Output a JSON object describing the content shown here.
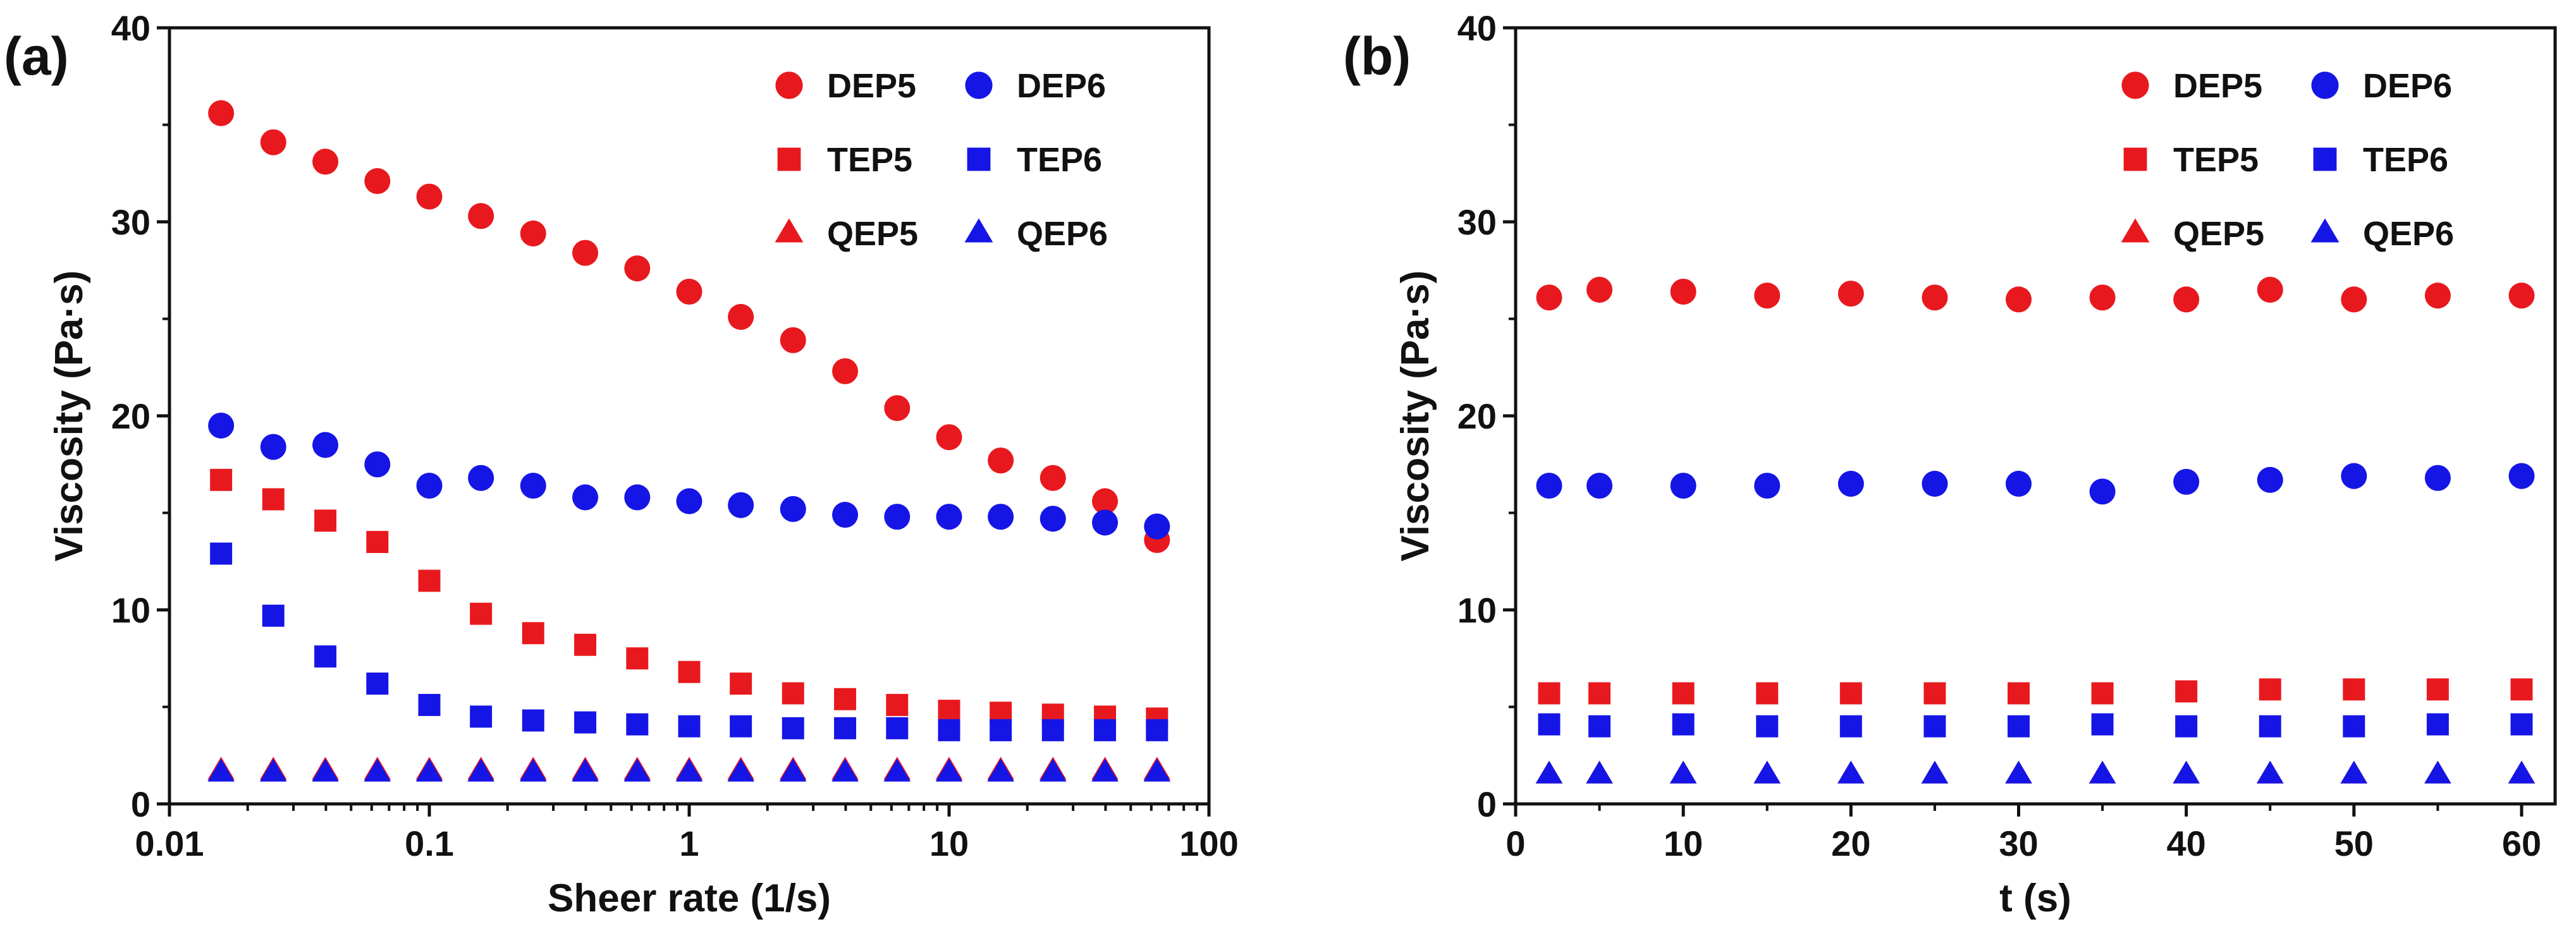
{
  "chart_data": [
    {
      "type": "scatter",
      "panel_label": "(a)",
      "xlabel": "Sheer rate (1/s)",
      "ylabel": "Viscosity (Pa·s)",
      "xscale": "log",
      "xlim": [
        0.01,
        100
      ],
      "ylim": [
        0,
        40
      ],
      "xticks": [
        0.01,
        0.1,
        1,
        10,
        100
      ],
      "xtick_labels": [
        "0.01",
        "0.1",
        "1",
        "10",
        "100"
      ],
      "yticks": [
        0,
        10,
        20,
        30,
        40
      ],
      "ytick_labels": [
        "0",
        "10",
        "20",
        "30",
        "40"
      ],
      "legend_position": "top-right",
      "x": [
        0.0158,
        0.0251,
        0.0398,
        0.0631,
        0.1,
        0.158,
        0.251,
        0.398,
        0.631,
        1,
        1.58,
        2.51,
        3.98,
        6.31,
        10,
        15.8,
        25.1,
        39.8,
        63.1
      ],
      "series": [
        {
          "name": "DEP5",
          "color": "#e8191e",
          "marker": "circle",
          "values": [
            35.6,
            34.1,
            33.1,
            32.1,
            31.3,
            30.3,
            29.4,
            28.4,
            27.6,
            26.4,
            25.1,
            23.9,
            22.3,
            20.4,
            18.9,
            17.7,
            16.8,
            15.6,
            13.6
          ]
        },
        {
          "name": "TEP5",
          "color": "#e8191e",
          "marker": "square",
          "values": [
            16.7,
            15.7,
            14.6,
            13.5,
            11.5,
            9.8,
            8.8,
            8.2,
            7.5,
            6.8,
            6.2,
            5.7,
            5.4,
            5.1,
            4.8,
            4.7,
            4.6,
            4.5,
            4.4
          ]
        },
        {
          "name": "QEP5",
          "color": "#e8191e",
          "marker": "triangle",
          "values": [
            1.7,
            1.7,
            1.7,
            1.7,
            1.7,
            1.7,
            1.7,
            1.7,
            1.7,
            1.7,
            1.7,
            1.7,
            1.7,
            1.7,
            1.7,
            1.7,
            1.7,
            1.7,
            1.7
          ]
        },
        {
          "name": "DEP6",
          "color": "#1515e6",
          "marker": "circle",
          "values": [
            19.5,
            18.4,
            18.5,
            17.5,
            16.4,
            16.8,
            16.4,
            15.8,
            15.8,
            15.6,
            15.4,
            15.2,
            14.9,
            14.8,
            14.8,
            14.8,
            14.7,
            14.5,
            14.3
          ]
        },
        {
          "name": "TEP6",
          "color": "#1515e6",
          "marker": "square",
          "values": [
            12.9,
            9.7,
            7.6,
            6.2,
            5.1,
            4.5,
            4.3,
            4.2,
            4.1,
            4.0,
            4.0,
            3.9,
            3.9,
            3.9,
            3.8,
            3.8,
            3.8,
            3.8,
            3.8
          ]
        },
        {
          "name": "QEP6",
          "color": "#1515e6",
          "marker": "triangle",
          "values": [
            1.6,
            1.6,
            1.6,
            1.6,
            1.6,
            1.6,
            1.6,
            1.6,
            1.6,
            1.6,
            1.6,
            1.6,
            1.6,
            1.6,
            1.6,
            1.6,
            1.6,
            1.6,
            1.6
          ]
        }
      ]
    },
    {
      "type": "scatter",
      "panel_label": "(b)",
      "xlabel": "t (s)",
      "ylabel": "Viscosity (Pa·s)",
      "xscale": "linear",
      "xlim": [
        0,
        62
      ],
      "ylim": [
        0,
        40
      ],
      "xticks": [
        0,
        10,
        20,
        30,
        40,
        50,
        60
      ],
      "xtick_labels": [
        "0",
        "10",
        "20",
        "30",
        "40",
        "50",
        "60"
      ],
      "yticks": [
        0,
        10,
        20,
        30,
        40
      ],
      "ytick_labels": [
        "0",
        "10",
        "20",
        "30",
        "40"
      ],
      "legend_position": "top-right",
      "x": [
        2,
        5,
        10,
        15,
        20,
        25,
        30,
        35,
        40,
        45,
        50,
        55,
        60
      ],
      "series": [
        {
          "name": "DEP5",
          "color": "#e8191e",
          "marker": "circle",
          "values": [
            26.1,
            26.5,
            26.4,
            26.2,
            26.3,
            26.1,
            26.0,
            26.1,
            26.0,
            26.5,
            26.0,
            26.2,
            26.2
          ]
        },
        {
          "name": "TEP5",
          "color": "#e8191e",
          "marker": "square",
          "values": [
            5.7,
            5.7,
            5.7,
            5.7,
            5.7,
            5.7,
            5.7,
            5.7,
            5.8,
            5.9,
            5.9,
            5.9,
            5.9
          ]
        },
        {
          "name": "QEP5",
          "color": "#e8191e",
          "marker": "triangle",
          "values": [
            1.5,
            1.5,
            1.5,
            1.5,
            1.5,
            1.5,
            1.5,
            1.5,
            1.5,
            1.5,
            1.5,
            1.5,
            1.5
          ]
        },
        {
          "name": "DEP6",
          "color": "#1515e6",
          "marker": "circle",
          "values": [
            16.4,
            16.4,
            16.4,
            16.4,
            16.5,
            16.5,
            16.5,
            16.1,
            16.6,
            16.7,
            16.9,
            16.8,
            16.9
          ]
        },
        {
          "name": "TEP6",
          "color": "#1515e6",
          "marker": "square",
          "values": [
            4.1,
            4.0,
            4.1,
            4.0,
            4.0,
            4.0,
            4.0,
            4.1,
            4.0,
            4.0,
            4.0,
            4.1,
            4.1
          ]
        },
        {
          "name": "QEP6",
          "color": "#1515e6",
          "marker": "triangle",
          "values": [
            1.5,
            1.5,
            1.5,
            1.5,
            1.5,
            1.5,
            1.5,
            1.5,
            1.5,
            1.5,
            1.5,
            1.5,
            1.5
          ]
        }
      ]
    }
  ]
}
